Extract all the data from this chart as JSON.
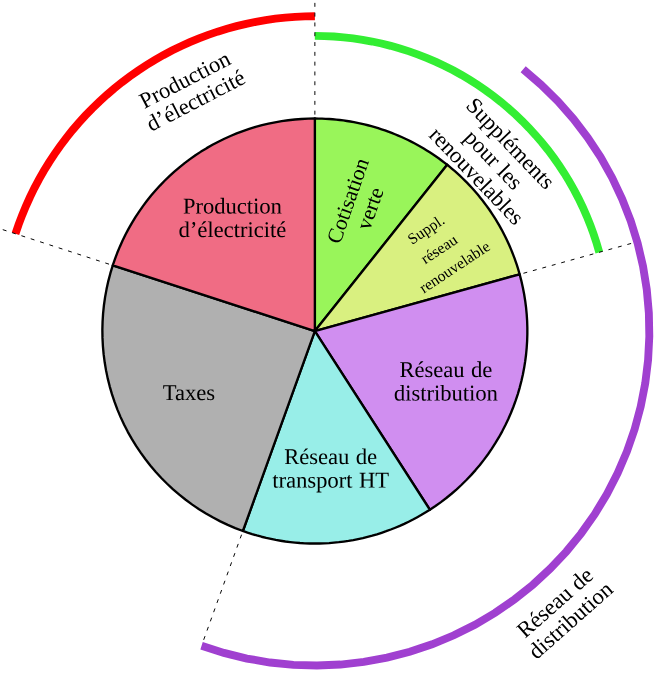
{
  "chart_data": {
    "type": "pie",
    "categories": [
      "Cotisation verte",
      "Suppl. réseau renouvelable",
      "Réseau de distribution",
      "Réseau de transport HT",
      "Taxes",
      "Production d’électricité"
    ],
    "values": [
      10.7,
      10.0,
      20.2,
      14.6,
      24.5,
      20.0
    ],
    "colors": [
      "#99f55a",
      "#d9f080",
      "#d08ef0",
      "#98eee8",
      "#b0b0b0",
      "#f06c84"
    ],
    "annotations": [
      "Production d’électricité",
      "Suppléments pour les renouvelables",
      "Réseau de distribution"
    ]
  }
}
